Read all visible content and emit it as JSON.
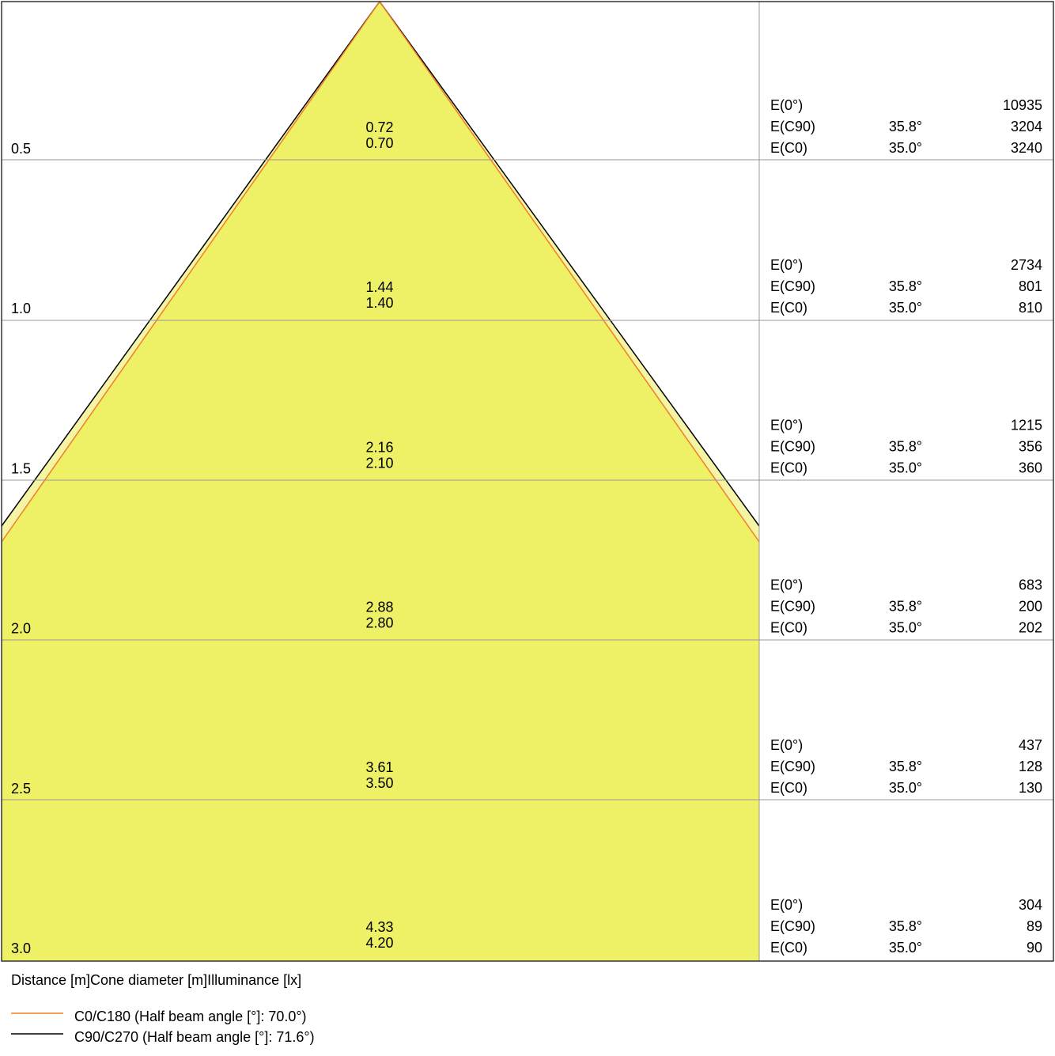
{
  "rows": [
    {
      "distance": "0.5",
      "diameters": [
        "0.72",
        "0.70"
      ],
      "illuminance": [
        {
          "label": "E(0°)",
          "value": "10935"
        },
        {
          "label": "E(C90)",
          "angle": "35.8°",
          "value": "3204"
        },
        {
          "label": "E(C0)",
          "angle": "35.0°",
          "value": "3240"
        }
      ]
    },
    {
      "distance": "1.0",
      "diameters": [
        "1.44",
        "1.40"
      ],
      "illuminance": [
        {
          "label": "E(0°)",
          "value": "2734"
        },
        {
          "label": "E(C90)",
          "angle": "35.8°",
          "value": "801"
        },
        {
          "label": "E(C0)",
          "angle": "35.0°",
          "value": "810"
        }
      ]
    },
    {
      "distance": "1.5",
      "diameters": [
        "2.16",
        "2.10"
      ],
      "illuminance": [
        {
          "label": "E(0°)",
          "value": "1215"
        },
        {
          "label": "E(C90)",
          "angle": "35.8°",
          "value": "356"
        },
        {
          "label": "E(C0)",
          "angle": "35.0°",
          "value": "360"
        }
      ]
    },
    {
      "distance": "2.0",
      "diameters": [
        "2.88",
        "2.80"
      ],
      "illuminance": [
        {
          "label": "E(0°)",
          "value": "683"
        },
        {
          "label": "E(C90)",
          "angle": "35.8°",
          "value": "200"
        },
        {
          "label": "E(C0)",
          "angle": "35.0°",
          "value": "202"
        }
      ]
    },
    {
      "distance": "2.5",
      "diameters": [
        "3.61",
        "3.50"
      ],
      "illuminance": [
        {
          "label": "E(0°)",
          "value": "437"
        },
        {
          "label": "E(C90)",
          "angle": "35.8°",
          "value": "128"
        },
        {
          "label": "E(C0)",
          "angle": "35.0°",
          "value": "130"
        }
      ]
    },
    {
      "distance": "3.0",
      "diameters": [
        "4.33",
        "4.20"
      ],
      "illuminance": [
        {
          "label": "E(0°)",
          "value": "304"
        },
        {
          "label": "E(C90)",
          "angle": "35.8°",
          "value": "89"
        },
        {
          "label": "E(C0)",
          "angle": "35.0°",
          "value": "90"
        }
      ]
    }
  ],
  "footer": {
    "headings": [
      "Distance [m]",
      "Cone diameter [m]",
      "Illuminance [lx]"
    ]
  },
  "legend": [
    {
      "label": "C0/C180 (Half beam angle [°]: 70.0°)",
      "color": "#f07f26"
    },
    {
      "label": "C90/C270 (Half beam angle [°]: 71.6°)",
      "color": "#000000"
    }
  ]
}
